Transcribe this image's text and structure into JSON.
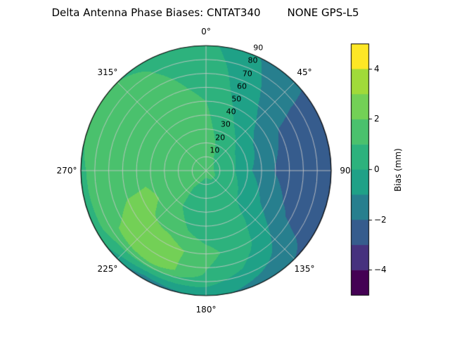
{
  "chart_data": {
    "type": "heatmap",
    "projection": "polar",
    "title_left": "Delta Antenna Phase Biases: CNTAT340",
    "title_right": "NONE GPS-L5",
    "colorbar_label": "Bias (mm)",
    "clim": [
      -5,
      5
    ],
    "band_step": 1,
    "radial_range": [
      0,
      90
    ],
    "grid": true,
    "legend_position": "colorbar-right",
    "colors": [
      "#440154",
      "#46327e",
      "#365c8d",
      "#277f8e",
      "#1fa187",
      "#2db27d",
      "#4ac16d",
      "#73d056",
      "#a0da39",
      "#fde725"
    ],
    "colorbar_ticks": [
      -4,
      -2,
      0,
      2,
      4
    ],
    "angle_ticks": [
      {
        "deg": 0,
        "label": "0°"
      },
      {
        "deg": 45,
        "label": "45°"
      },
      {
        "deg": 90,
        "label": "90"
      },
      {
        "deg": 135,
        "label": "135°"
      },
      {
        "deg": 180,
        "label": "180°"
      },
      {
        "deg": 225,
        "label": "225°"
      },
      {
        "deg": 270,
        "label": "270°"
      },
      {
        "deg": 315,
        "label": "315°"
      }
    ],
    "radial_ticks": [
      {
        "r": 10,
        "label": "10"
      },
      {
        "r": 20,
        "label": "20"
      },
      {
        "r": 30,
        "label": "30"
      },
      {
        "r": 40,
        "label": "40"
      },
      {
        "r": 50,
        "label": "50"
      },
      {
        "r": 60,
        "label": "60"
      },
      {
        "r": 70,
        "label": "70"
      },
      {
        "r": 80,
        "label": "80"
      },
      {
        "r": 90,
        "label": "90"
      }
    ],
    "azimuth_deg": [
      0,
      30,
      60,
      90,
      120,
      150,
      180,
      210,
      240,
      270,
      300,
      330
    ],
    "radii": [
      0,
      15,
      30,
      45,
      60,
      75,
      90
    ],
    "values_bias_mm": [
      [
        1.3,
        1.3,
        1.3,
        1.3,
        1.3,
        1.3,
        1.3,
        1.3,
        1.3,
        1.3,
        1.3,
        1.3
      ],
      [
        1.6,
        0.9,
        0.6,
        0.5,
        0.7,
        0.7,
        0.4,
        0.9,
        1.4,
        1.6,
        1.6,
        1.6
      ],
      [
        1.3,
        0.4,
        -0.4,
        -0.8,
        -0.2,
        0.3,
        0.2,
        0.9,
        1.7,
        1.8,
        1.8,
        1.5
      ],
      [
        1.1,
        -0.2,
        -1.4,
        -1.8,
        -1.0,
        0.4,
        0.5,
        1.4,
        2.2,
        1.8,
        1.8,
        1.5
      ],
      [
        0.8,
        -0.6,
        -2.0,
        -2.6,
        -1.8,
        0.2,
        1.4,
        2.6,
        2.2,
        1.6,
        1.8,
        1.3
      ],
      [
        0.6,
        -0.9,
        -2.3,
        -2.7,
        -2.3,
        -0.4,
        0.9,
        2.8,
        1.9,
        1.3,
        1.6,
        1.1
      ],
      [
        0.3,
        -1.2,
        -2.4,
        -2.2,
        -2.4,
        -1.6,
        -0.6,
        -1.8,
        0.6,
        0.9,
        1.1,
        0.9
      ]
    ]
  }
}
